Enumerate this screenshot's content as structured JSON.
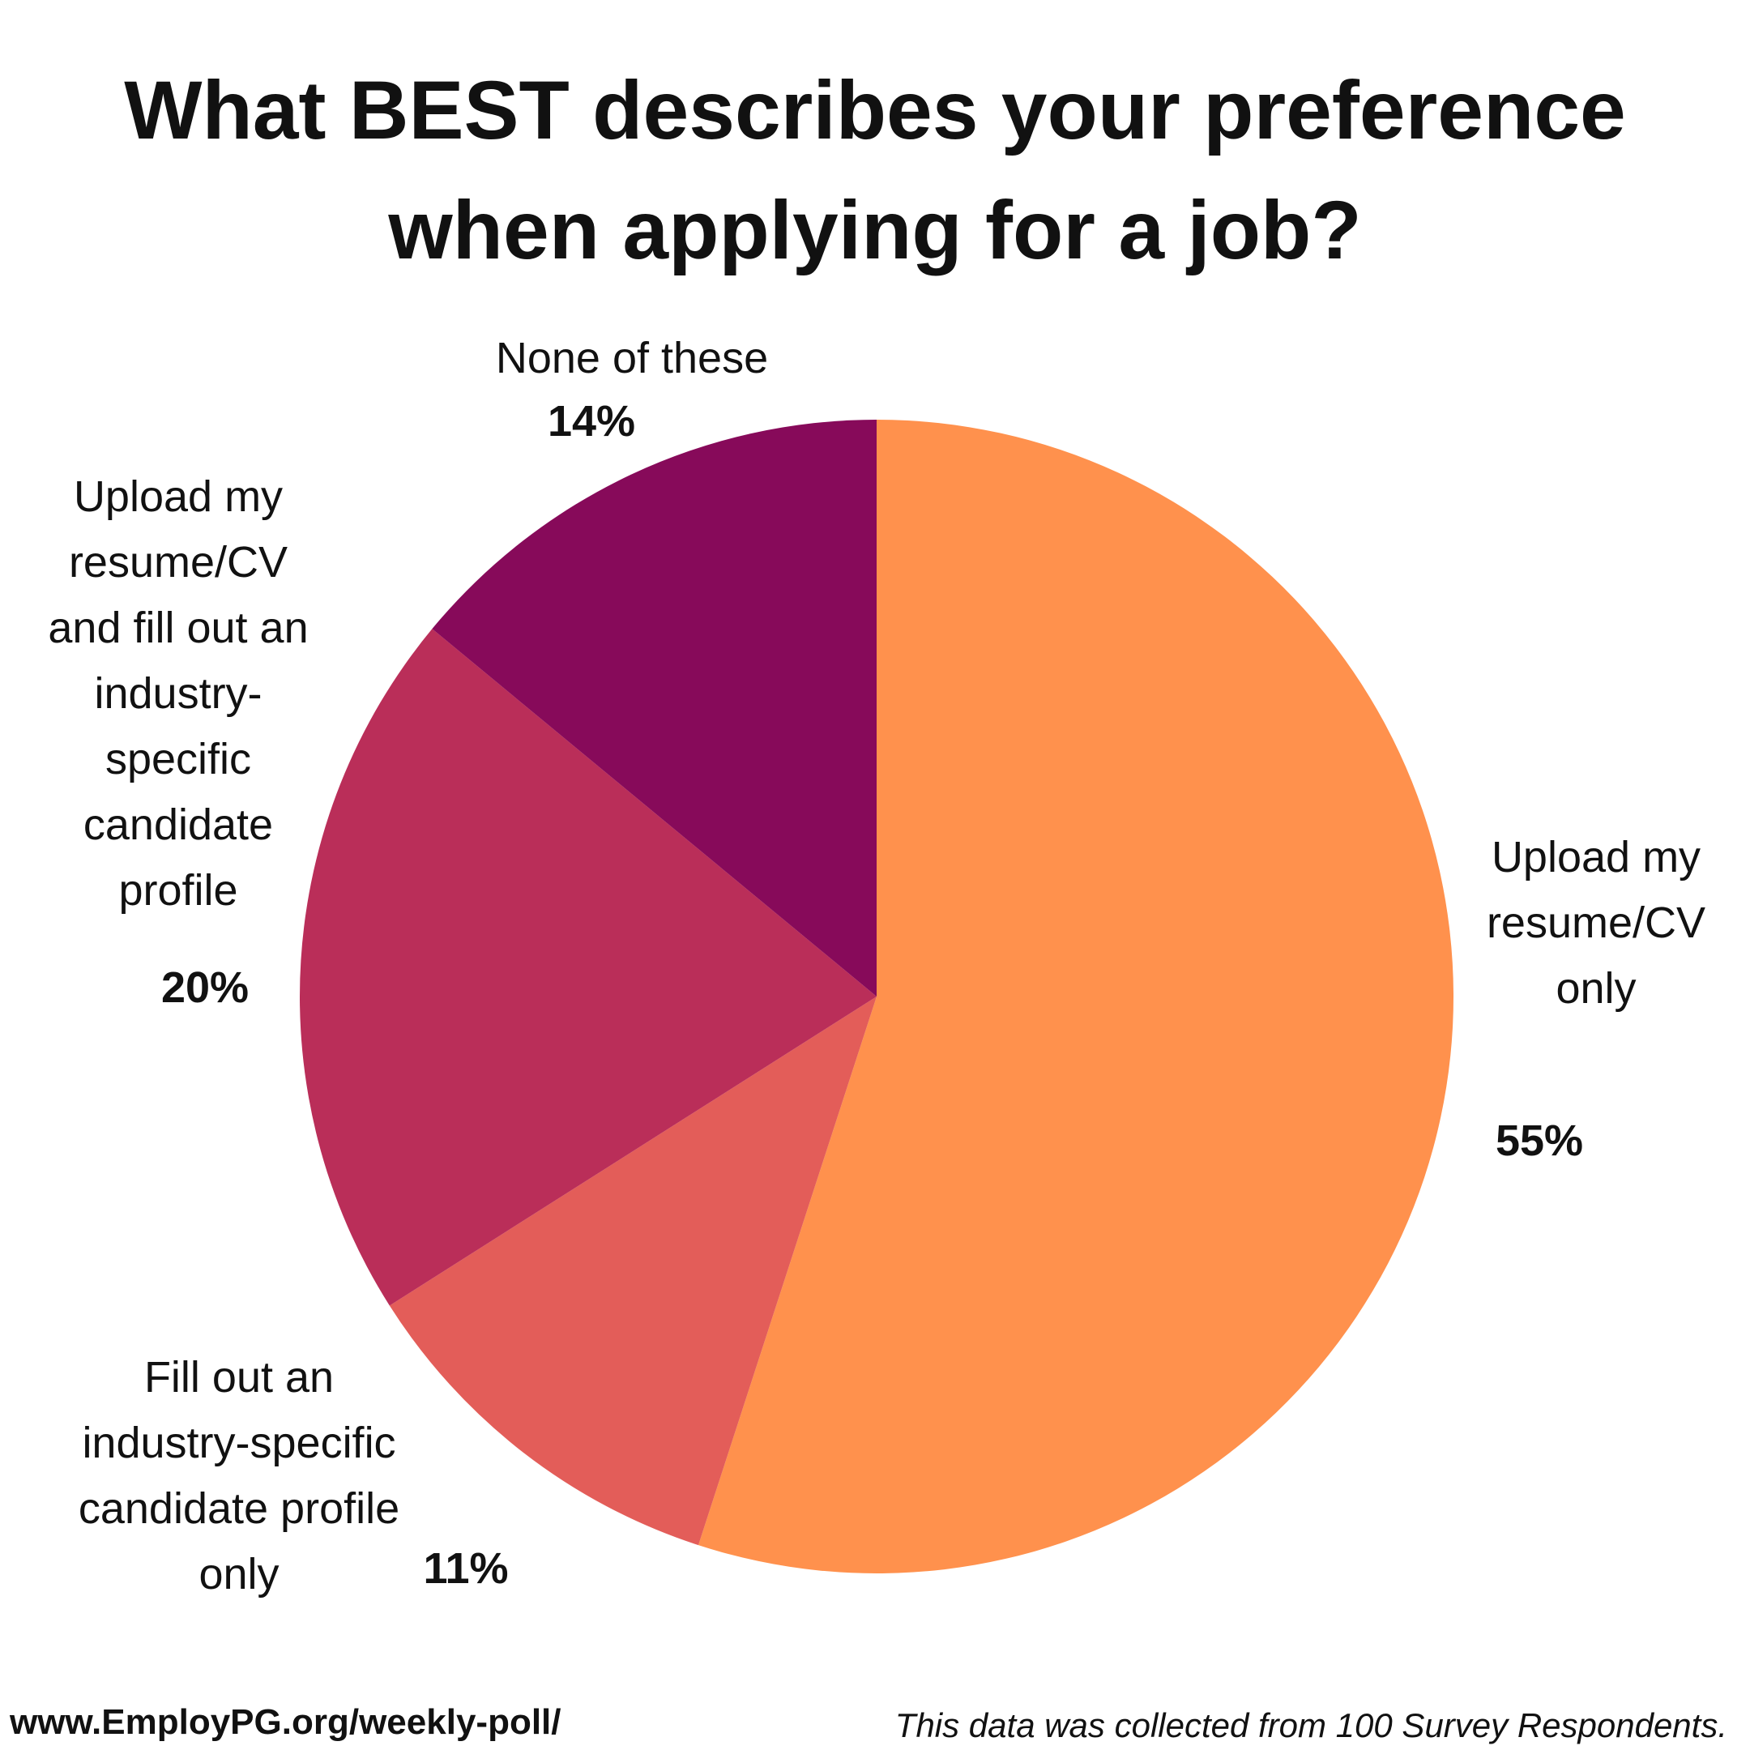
{
  "title_lines": [
    "What BEST describes your preference",
    "when applying for a job?"
  ],
  "chart_data": {
    "type": "pie",
    "title": "What BEST describes your preference when applying for a job?",
    "unit": "%",
    "slices": [
      {
        "label": "Upload my resume/CV only",
        "value": 55,
        "percent_label": "55%",
        "color": "#FF914D"
      },
      {
        "label": "Fill out an industry-specific candidate profile only",
        "value": 11,
        "percent_label": "11%",
        "color": "#E35D59"
      },
      {
        "label": "Upload my resume/CV and fill out an industry-specific candidate profile",
        "value": 20,
        "percent_label": "20%",
        "color": "#BA2E59"
      },
      {
        "label": "None of these",
        "value": 14,
        "percent_label": "14%",
        "color": "#870A5A"
      }
    ]
  },
  "labels": {
    "upload_only": [
      "Upload my",
      "resume/CV",
      "only"
    ],
    "fill_only": [
      "Fill out an",
      "industry-specific",
      "candidate profile",
      "only"
    ],
    "upload_and_fill": [
      "Upload my",
      "resume/CV",
      "and fill out an",
      "industry-",
      "specific",
      "candidate",
      "profile"
    ],
    "none": [
      "None of these"
    ]
  },
  "footer": {
    "url": "www.EmployPG.org/weekly-poll/",
    "note": "This data was collected from 100 Survey Respondents."
  }
}
